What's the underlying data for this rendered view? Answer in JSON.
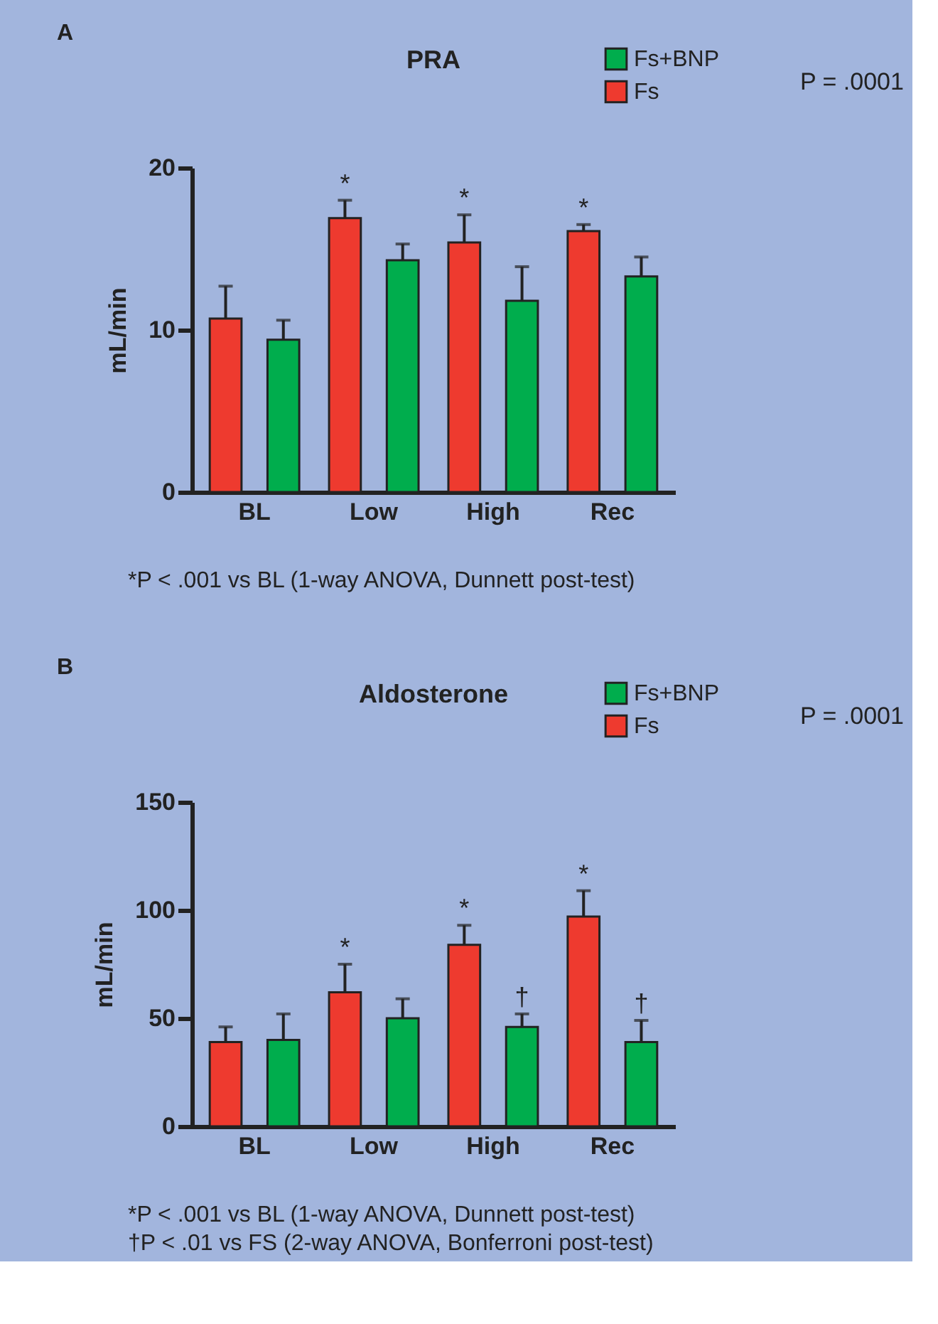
{
  "chart_data": [
    {
      "type": "bar",
      "title": "PRA",
      "ylabel": "mL/min",
      "categories": [
        "BL",
        "Low",
        "High",
        "Rec"
      ],
      "series": [
        {
          "name": "Fs",
          "color": "#ee3a2f",
          "values": [
            10.7,
            16.9,
            15.4,
            16.1
          ],
          "errors": [
            2.0,
            1.1,
            1.7,
            0.4
          ],
          "value_labels": [
            null,
            "*",
            "*",
            "*"
          ]
        },
        {
          "name": "Fs+BNP",
          "color": "#00ad4d",
          "values": [
            9.4,
            14.3,
            11.8,
            13.3
          ],
          "errors": [
            1.2,
            1.0,
            2.1,
            1.2
          ]
        }
      ],
      "ylim": [
        0,
        20
      ],
      "yticks": [
        0,
        10,
        20
      ],
      "grid": false,
      "legend": "top right",
      "annotations": [
        "A",
        "P = .0001",
        "*P < .001 vs BL (1-way ANOVA, Dunnett post-test)"
      ]
    },
    {
      "type": "bar",
      "title": "Aldosterone",
      "ylabel": "mL/min",
      "categories": [
        "BL",
        "Low",
        "High",
        "Rec"
      ],
      "series": [
        {
          "name": "Fs",
          "color": "#ee3a2f",
          "values": [
            39,
            62,
            84,
            97
          ],
          "errors": [
            7,
            13,
            9,
            12
          ],
          "value_labels": [
            null,
            "*",
            "*",
            "*"
          ]
        },
        {
          "name": "Fs+BNP",
          "color": "#00ad4d",
          "values": [
            40,
            50,
            46,
            39
          ],
          "errors": [
            12,
            9,
            6,
            10
          ],
          "value_labels": [
            null,
            null,
            "†",
            "†"
          ]
        }
      ],
      "ylim": [
        0,
        150
      ],
      "yticks": [
        0,
        50,
        100,
        150
      ],
      "grid": false,
      "legend": "top right",
      "annotations": [
        "B",
        "P = .0001",
        "*P < .001 vs BL (1-way ANOVA, Dunnett post-test)",
        "†P < .01 vs FS (2-way ANOVA, Bonferroni post-test)"
      ]
    }
  ]
}
